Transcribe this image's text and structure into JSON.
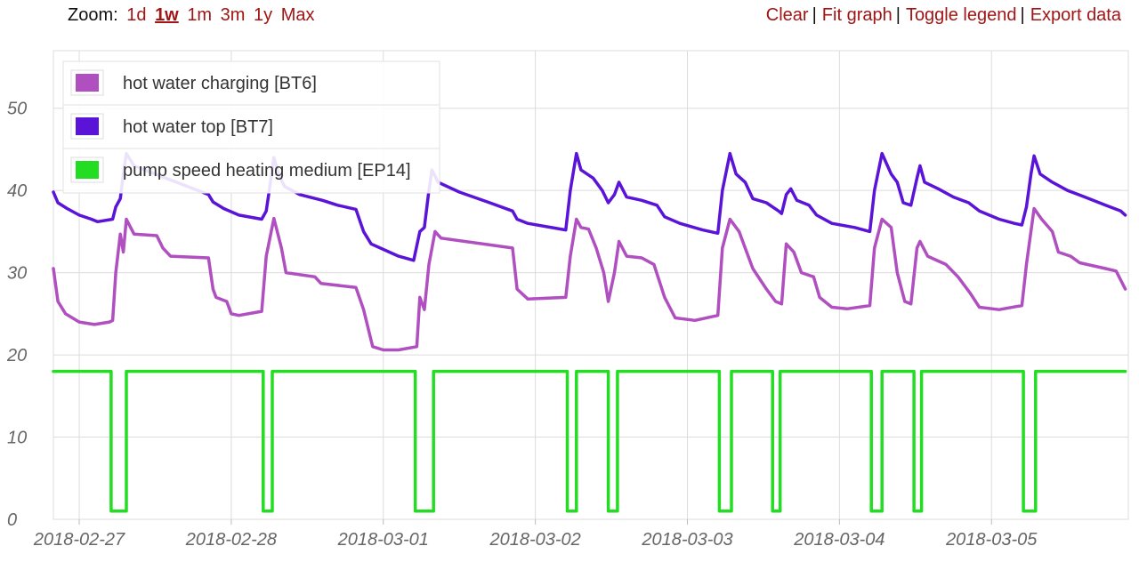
{
  "zoom": {
    "label": "Zoom:",
    "options": [
      {
        "label": "1d",
        "active": false
      },
      {
        "label": "1w",
        "active": true
      },
      {
        "label": "1m",
        "active": false
      },
      {
        "label": "3m",
        "active": false
      },
      {
        "label": "1y",
        "active": false
      },
      {
        "label": "Max",
        "active": false
      }
    ]
  },
  "actions": {
    "clear": "Clear",
    "fit": "Fit graph",
    "toggle_legend": "Toggle legend",
    "export": "Export data",
    "separator": "|"
  },
  "colors": {
    "link": "#a11515",
    "grid": "#dcdcdc",
    "series_bt6": "#b04fc0",
    "series_bt7": "#5a14d8",
    "series_ep14": "#22dd22"
  },
  "chart_data": {
    "type": "line",
    "xlabel": "",
    "ylabel": "",
    "ylim": [
      0,
      57
    ],
    "yticks": [
      0,
      10,
      20,
      30,
      40,
      50
    ],
    "xlim": [
      -0.17,
      6.9
    ],
    "xtick_labels": [
      "2018-02-27",
      "2018-02-28",
      "2018-03-01",
      "2018-03-02",
      "2018-03-03",
      "2018-03-04",
      "2018-03-05"
    ],
    "x_unit": "days from 2018-02-27",
    "grid": true,
    "legend_position": "top-left",
    "series": [
      {
        "name": "hot water charging [BT6]",
        "color": "#b04fc0",
        "points": [
          [
            -0.17,
            30.5
          ],
          [
            -0.14,
            26.5
          ],
          [
            -0.09,
            25
          ],
          [
            0,
            24
          ],
          [
            0.1,
            23.7
          ],
          [
            0.2,
            24
          ],
          [
            0.22,
            24.2
          ],
          [
            0.24,
            30
          ],
          [
            0.27,
            34.7
          ],
          [
            0.29,
            32.5
          ],
          [
            0.31,
            36.5
          ],
          [
            0.36,
            34.7
          ],
          [
            0.51,
            34.5
          ],
          [
            0.55,
            33
          ],
          [
            0.6,
            32
          ],
          [
            0.85,
            31.8
          ],
          [
            0.88,
            28
          ],
          [
            0.9,
            27
          ],
          [
            0.97,
            26.5
          ],
          [
            1.0,
            25
          ],
          [
            1.05,
            24.8
          ],
          [
            1.2,
            25.3
          ],
          [
            1.23,
            32
          ],
          [
            1.28,
            36.6
          ],
          [
            1.33,
            33
          ],
          [
            1.36,
            30
          ],
          [
            1.55,
            29.5
          ],
          [
            1.59,
            28.7
          ],
          [
            1.82,
            28.2
          ],
          [
            1.87,
            25.5
          ],
          [
            1.93,
            21
          ],
          [
            2.0,
            20.6
          ],
          [
            2.1,
            20.6
          ],
          [
            2.22,
            21
          ],
          [
            2.24,
            27
          ],
          [
            2.27,
            25.5
          ],
          [
            2.3,
            31
          ],
          [
            2.34,
            35
          ],
          [
            2.38,
            34.2
          ],
          [
            2.85,
            33
          ],
          [
            2.88,
            28
          ],
          [
            2.95,
            26.8
          ],
          [
            3.2,
            27
          ],
          [
            3.23,
            32
          ],
          [
            3.27,
            36.5
          ],
          [
            3.3,
            35.5
          ],
          [
            3.35,
            35.3
          ],
          [
            3.4,
            33
          ],
          [
            3.45,
            30
          ],
          [
            3.48,
            26.5
          ],
          [
            3.52,
            30
          ],
          [
            3.55,
            33.8
          ],
          [
            3.6,
            32
          ],
          [
            3.7,
            31.8
          ],
          [
            3.78,
            31
          ],
          [
            3.85,
            27
          ],
          [
            3.92,
            24.5
          ],
          [
            4.05,
            24.2
          ],
          [
            4.2,
            24.8
          ],
          [
            4.23,
            33
          ],
          [
            4.28,
            36.5
          ],
          [
            4.34,
            35
          ],
          [
            4.38,
            33
          ],
          [
            4.43,
            30.5
          ],
          [
            4.52,
            28
          ],
          [
            4.58,
            26.5
          ],
          [
            4.62,
            26.2
          ],
          [
            4.65,
            33.5
          ],
          [
            4.7,
            32.5
          ],
          [
            4.75,
            30
          ],
          [
            4.83,
            29.5
          ],
          [
            4.87,
            27
          ],
          [
            4.95,
            25.8
          ],
          [
            5.05,
            25.6
          ],
          [
            5.2,
            26
          ],
          [
            5.23,
            33
          ],
          [
            5.28,
            36.5
          ],
          [
            5.34,
            35.5
          ],
          [
            5.38,
            30
          ],
          [
            5.43,
            26.5
          ],
          [
            5.47,
            26.2
          ],
          [
            5.51,
            33
          ],
          [
            5.53,
            33.8
          ],
          [
            5.58,
            32
          ],
          [
            5.7,
            31
          ],
          [
            5.78,
            29.5
          ],
          [
            5.86,
            27.5
          ],
          [
            5.92,
            25.8
          ],
          [
            6.05,
            25.5
          ],
          [
            6.2,
            26
          ],
          [
            6.23,
            31
          ],
          [
            6.28,
            37.8
          ],
          [
            6.33,
            36.5
          ],
          [
            6.4,
            35
          ],
          [
            6.44,
            32.5
          ],
          [
            6.52,
            32
          ],
          [
            6.58,
            31.2
          ],
          [
            6.75,
            30.5
          ],
          [
            6.82,
            30.2
          ],
          [
            6.88,
            28
          ]
        ]
      },
      {
        "name": "hot water top [BT7]",
        "color": "#5a14d8",
        "points": [
          [
            -0.17,
            39.8
          ],
          [
            -0.14,
            38.5
          ],
          [
            -0.08,
            37.8
          ],
          [
            0,
            37
          ],
          [
            0.08,
            36.5
          ],
          [
            0.12,
            36.2
          ],
          [
            0.22,
            36.5
          ],
          [
            0.24,
            38
          ],
          [
            0.27,
            39
          ],
          [
            0.29,
            42
          ],
          [
            0.31,
            44.5
          ],
          [
            0.36,
            43
          ],
          [
            0.5,
            42
          ],
          [
            0.85,
            39.5
          ],
          [
            0.88,
            38.6
          ],
          [
            0.95,
            37.8
          ],
          [
            1.05,
            37
          ],
          [
            1.2,
            36.5
          ],
          [
            1.23,
            37.5
          ],
          [
            1.25,
            40
          ],
          [
            1.28,
            44
          ],
          [
            1.31,
            42
          ],
          [
            1.35,
            40.5
          ],
          [
            1.45,
            39.5
          ],
          [
            1.6,
            38.8
          ],
          [
            1.7,
            38.2
          ],
          [
            1.82,
            37.7
          ],
          [
            1.87,
            35
          ],
          [
            1.92,
            33.5
          ],
          [
            2.1,
            32
          ],
          [
            2.2,
            31.5
          ],
          [
            2.24,
            35
          ],
          [
            2.27,
            35.5
          ],
          [
            2.3,
            40
          ],
          [
            2.32,
            42.5
          ],
          [
            2.36,
            41
          ],
          [
            2.5,
            39.8
          ],
          [
            2.7,
            38.5
          ],
          [
            2.85,
            37.5
          ],
          [
            2.88,
            36.5
          ],
          [
            2.95,
            36
          ],
          [
            3.2,
            35.2
          ],
          [
            3.23,
            40
          ],
          [
            3.27,
            44.5
          ],
          [
            3.3,
            42.5
          ],
          [
            3.38,
            41.5
          ],
          [
            3.44,
            40
          ],
          [
            3.48,
            38.5
          ],
          [
            3.52,
            39.5
          ],
          [
            3.55,
            41
          ],
          [
            3.6,
            39.2
          ],
          [
            3.7,
            38.8
          ],
          [
            3.8,
            38.2
          ],
          [
            3.85,
            36.8
          ],
          [
            3.95,
            36
          ],
          [
            4.1,
            35.2
          ],
          [
            4.2,
            34.8
          ],
          [
            4.23,
            40
          ],
          [
            4.28,
            44.5
          ],
          [
            4.32,
            42
          ],
          [
            4.38,
            41
          ],
          [
            4.43,
            39
          ],
          [
            4.52,
            38.5
          ],
          [
            4.6,
            37.5
          ],
          [
            4.62,
            37.2
          ],
          [
            4.65,
            39.5
          ],
          [
            4.68,
            40.2
          ],
          [
            4.72,
            38.8
          ],
          [
            4.8,
            38.2
          ],
          [
            4.85,
            37
          ],
          [
            4.95,
            36
          ],
          [
            5.1,
            35.5
          ],
          [
            5.2,
            35
          ],
          [
            5.23,
            40
          ],
          [
            5.28,
            44.5
          ],
          [
            5.34,
            42
          ],
          [
            5.38,
            41
          ],
          [
            5.42,
            38.5
          ],
          [
            5.47,
            38.2
          ],
          [
            5.51,
            41.5
          ],
          [
            5.53,
            43
          ],
          [
            5.56,
            41
          ],
          [
            5.65,
            40.2
          ],
          [
            5.75,
            39.2
          ],
          [
            5.85,
            38.5
          ],
          [
            5.92,
            37.5
          ],
          [
            6.05,
            36.5
          ],
          [
            6.15,
            36
          ],
          [
            6.2,
            35.8
          ],
          [
            6.23,
            38
          ],
          [
            6.26,
            42
          ],
          [
            6.28,
            44.2
          ],
          [
            6.32,
            42
          ],
          [
            6.4,
            41
          ],
          [
            6.5,
            40
          ],
          [
            6.6,
            39.3
          ],
          [
            6.75,
            38.2
          ],
          [
            6.85,
            37.5
          ],
          [
            6.88,
            37
          ]
        ]
      },
      {
        "name": "pump speed heating medium [EP14]",
        "color": "#22dd22",
        "points": [
          [
            -0.17,
            18
          ],
          [
            0.21,
            18
          ],
          [
            0.21,
            1
          ],
          [
            0.31,
            1
          ],
          [
            0.31,
            18
          ],
          [
            1.21,
            18
          ],
          [
            1.21,
            1
          ],
          [
            1.27,
            1
          ],
          [
            1.27,
            18
          ],
          [
            2.21,
            18
          ],
          [
            2.21,
            1
          ],
          [
            2.33,
            1
          ],
          [
            2.33,
            18
          ],
          [
            3.21,
            18
          ],
          [
            3.21,
            1
          ],
          [
            3.27,
            1
          ],
          [
            3.27,
            18
          ],
          [
            3.48,
            18
          ],
          [
            3.48,
            1
          ],
          [
            3.54,
            1
          ],
          [
            3.54,
            18
          ],
          [
            4.21,
            18
          ],
          [
            4.21,
            1
          ],
          [
            4.29,
            1
          ],
          [
            4.29,
            18
          ],
          [
            4.56,
            18
          ],
          [
            4.56,
            1
          ],
          [
            4.61,
            1
          ],
          [
            4.61,
            18
          ],
          [
            5.21,
            18
          ],
          [
            5.21,
            1
          ],
          [
            5.28,
            1
          ],
          [
            5.28,
            18
          ],
          [
            5.49,
            18
          ],
          [
            5.49,
            1
          ],
          [
            5.54,
            1
          ],
          [
            5.54,
            18
          ],
          [
            6.21,
            18
          ],
          [
            6.21,
            1
          ],
          [
            6.29,
            1
          ],
          [
            6.29,
            18
          ],
          [
            6.88,
            18
          ]
        ]
      }
    ]
  }
}
